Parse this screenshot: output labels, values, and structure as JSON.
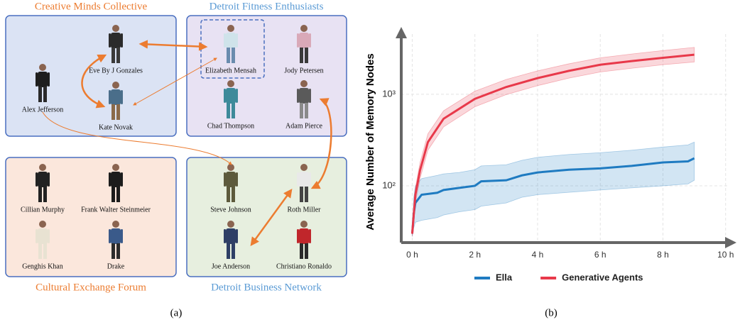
{
  "diagram": {
    "groups": [
      {
        "title": "Creative Minds Collective",
        "members": [
          "Eve By J Gonzales",
          "Alex Jefferson",
          "Kate Novak"
        ]
      },
      {
        "title": "Detroit Fitness Enthusiasts",
        "members": [
          "Elizabeth Mensah",
          "Jody Petersen",
          "Chad Thompson",
          "Adam Pierce"
        ]
      },
      {
        "title": "Cultural Exchange Forum",
        "members": [
          "Cillian Murphy",
          "Frank Walter Steinmeier",
          "Genghis Khan",
          "Drake"
        ]
      },
      {
        "title": "Detroit Business Network",
        "members": [
          "Steve Johnson",
          "Roth Miller",
          "Joe Anderson",
          "Christiano Ronaldo"
        ]
      }
    ],
    "caption": "(a)"
  },
  "chart_data": {
    "type": "line",
    "caption": "(b)",
    "y_label": "Average Number of Memory Nodes",
    "log_y": true,
    "grid": true,
    "legend": "bottom",
    "xlim": [
      -0.35,
      10.3
    ],
    "xticks": [
      {
        "value": 0,
        "label": "0 h"
      },
      {
        "value": 2,
        "label": "2 h"
      },
      {
        "value": 4,
        "label": "4 h"
      },
      {
        "value": 6,
        "label": "6 h"
      },
      {
        "value": 8,
        "label": "8 h"
      },
      {
        "value": 10,
        "label": "10 h"
      }
    ],
    "ylim": [
      24,
      3800
    ],
    "yticks": [
      {
        "value": 100,
        "label": "10²"
      },
      {
        "value": 1000,
        "label": "10³"
      }
    ],
    "series": [
      {
        "name": "Ella",
        "color": "#1f7bc1",
        "x": [
          0,
          0.05,
          0.1,
          0.3,
          0.8,
          1,
          1.5,
          2,
          2.2,
          3,
          3.5,
          4,
          5,
          6,
          7,
          8,
          8.8,
          9
        ],
        "values": [
          30,
          50,
          65,
          80,
          84,
          90,
          95,
          100,
          112,
          115,
          130,
          140,
          150,
          155,
          165,
          180,
          185,
          200
        ],
        "lower": [
          28,
          35,
          40,
          42,
          45,
          48,
          52,
          55,
          60,
          65,
          75,
          80,
          85,
          90,
          95,
          100,
          105,
          115
        ],
        "upper": [
          33,
          75,
          100,
          120,
          130,
          135,
          140,
          150,
          165,
          170,
          190,
          205,
          220,
          230,
          245,
          265,
          280,
          300
        ]
      },
      {
        "name": "Generative Agents",
        "color": "#e8394a",
        "x": [
          0,
          0.1,
          0.25,
          0.5,
          1,
          2,
          3,
          4,
          5,
          6,
          7,
          8,
          9
        ],
        "values": [
          30,
          80,
          148,
          300,
          540,
          890,
          1200,
          1500,
          1800,
          2100,
          2300,
          2500,
          2700
        ],
        "lower": [
          28,
          65,
          120,
          245,
          440,
          730,
          990,
          1240,
          1500,
          1750,
          1920,
          2100,
          2250
        ],
        "upper": [
          33,
          95,
          180,
          370,
          660,
          1080,
          1450,
          1800,
          2150,
          2500,
          2750,
          3000,
          3250
        ]
      }
    ]
  }
}
